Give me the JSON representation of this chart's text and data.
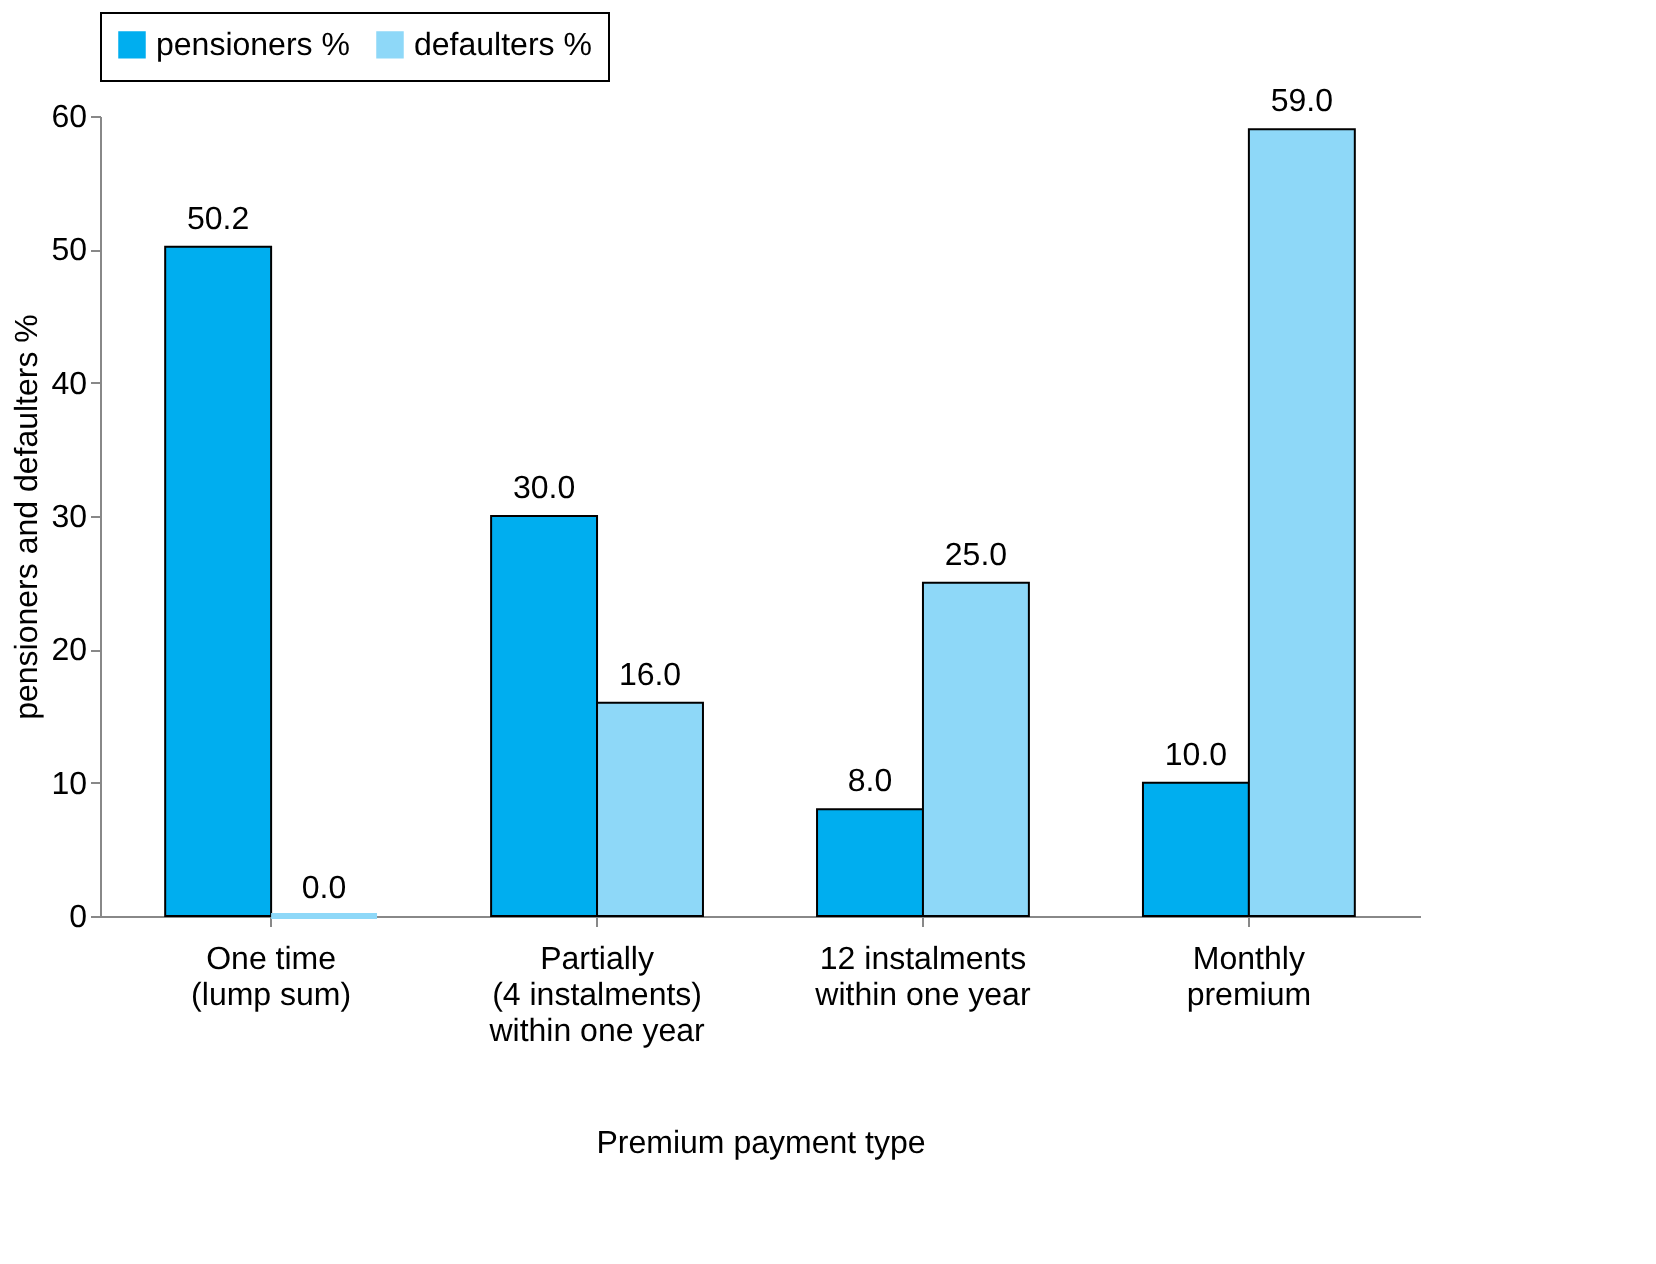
{
  "chart_data": {
    "type": "bar",
    "xlabel": "Premium payment type",
    "ylabel": "pensioners and defaulters %",
    "categories": [
      "One time\n(lump sum)",
      "Partially\n(4 instalments)\nwithin one year",
      "12 instalments\nwithin one year",
      "Monthly\npremium"
    ],
    "series": [
      {
        "name": "pensioners %",
        "color": "#00aeef",
        "values": [
          50.2,
          30.0,
          8.0,
          10.0
        ],
        "value_labels": [
          "50.2",
          "30.0",
          "8.0",
          "10.0"
        ]
      },
      {
        "name": "defaulters %",
        "color": "#8ed8f8",
        "values": [
          0.0,
          16.0,
          25.0,
          59.0
        ],
        "value_labels": [
          "0.0",
          "16.0",
          "25.0",
          "59.0"
        ]
      }
    ],
    "ylim": [
      0,
      60
    ],
    "yticks": [
      0,
      10,
      20,
      30,
      40,
      50,
      60
    ],
    "grid": false,
    "legend": "top"
  }
}
